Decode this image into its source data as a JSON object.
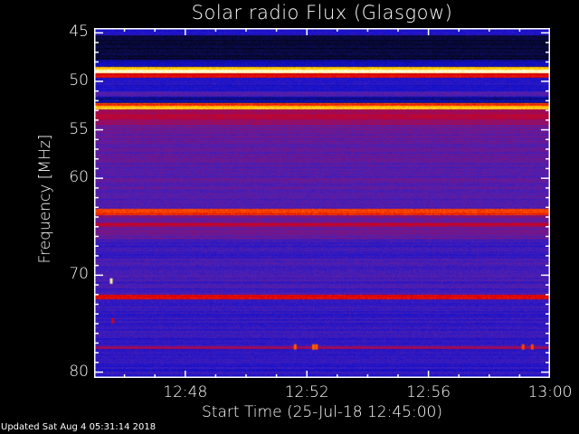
{
  "chart_data": {
    "type": "heatmap",
    "title": "Solar radio Flux (Glasgow)",
    "xlabel": "Start Time (25-Jul-18 12:45:00)",
    "ylabel": "Frequency [MHz]",
    "x_range_minutes": [
      "12:45",
      "13:00"
    ],
    "xticks": [
      "12:48",
      "12:52",
      "12:56",
      "13:00"
    ],
    "xtick_minutes": [
      3,
      7,
      11,
      15
    ],
    "ylim": [
      44.5,
      80.6
    ],
    "yticks": [
      45,
      50,
      55,
      60,
      70,
      80
    ],
    "ytick_labels": [
      "45",
      "50",
      "55",
      "60",
      "70",
      "80"
    ],
    "colormap": [
      "#000000",
      "#0a0a40",
      "#1010d0",
      "#5020b0",
      "#9a0c60",
      "#e00000",
      "#ff6000",
      "#ffe000",
      "#ffffff"
    ],
    "bands_mhz_level": [
      [
        44.5,
        45.2,
        0.28
      ],
      [
        45.2,
        47.8,
        0.1
      ],
      [
        47.8,
        48.5,
        0.22
      ],
      [
        48.5,
        48.8,
        0.85
      ],
      [
        48.8,
        49.2,
        0.98
      ],
      [
        49.2,
        49.6,
        0.62
      ],
      [
        49.6,
        50.4,
        0.3
      ],
      [
        50.4,
        51.0,
        0.26
      ],
      [
        51.0,
        51.6,
        0.36
      ],
      [
        51.6,
        52.2,
        0.2
      ],
      [
        52.2,
        52.5,
        0.7
      ],
      [
        52.5,
        52.9,
        0.86
      ],
      [
        52.9,
        54.5,
        0.52
      ],
      [
        54.5,
        55.5,
        0.42
      ],
      [
        55.5,
        58,
        0.4
      ],
      [
        58,
        63.2,
        0.38
      ],
      [
        63.2,
        63.8,
        0.68
      ],
      [
        63.8,
        64.6,
        0.44
      ],
      [
        64.6,
        65.0,
        0.55
      ],
      [
        65.0,
        66.2,
        0.42
      ],
      [
        66.2,
        72.0,
        0.34
      ],
      [
        72.0,
        72.5,
        0.62
      ],
      [
        72.5,
        77.3,
        0.32
      ],
      [
        77.3,
        77.6,
        0.5
      ],
      [
        77.6,
        80.6,
        0.3
      ]
    ],
    "bursts": [
      {
        "time_minute": 0.55,
        "freq_mhz": 70.6,
        "level": 0.95
      },
      {
        "time_minute": 0.6,
        "freq_mhz": 74.7,
        "level": 0.6
      },
      {
        "time_minute": 6.6,
        "freq_mhz": 77.4,
        "level": 0.75
      },
      {
        "time_minute": 7.2,
        "freq_mhz": 77.4,
        "level": 0.75
      },
      {
        "time_minute": 7.3,
        "freq_mhz": 77.4,
        "level": 0.75
      },
      {
        "time_minute": 14.1,
        "freq_mhz": 77.4,
        "level": 0.72
      },
      {
        "time_minute": 14.4,
        "freq_mhz": 77.4,
        "level": 0.72
      }
    ]
  },
  "footer": {
    "updated": "Updated Sat Aug  4 05:31:14 2018"
  }
}
